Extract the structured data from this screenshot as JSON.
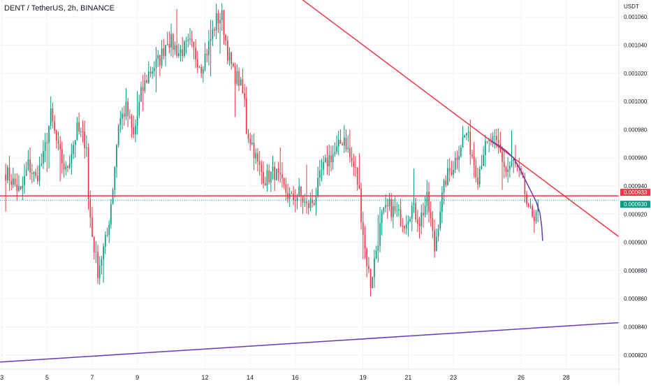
{
  "chart_data": {
    "type": "candlestick",
    "title": "DENT / TetherUS, 2h, BINANCE",
    "currency_label": "USDT",
    "y_ticks": [
      0.00082,
      0.00084,
      0.00086,
      0.00088,
      0.0009,
      0.00092,
      0.00094,
      0.00096,
      0.00098,
      0.001,
      0.00102,
      0.00104,
      0.00106
    ],
    "y_tick_labels": [
      "0.000820",
      "0.000840",
      "0.000860",
      "0.000880",
      "0.000900",
      "0.000920",
      "0.000940",
      "0.000960",
      "0.000980",
      "0.001000",
      "0.001020",
      "0.001040",
      "0.001060"
    ],
    "ylim": [
      0.00081,
      0.001072
    ],
    "x_ticks": [
      {
        "label": "3",
        "bar": -2
      },
      {
        "label": "5",
        "bar": 22
      },
      {
        "label": "7",
        "bar": 46
      },
      {
        "label": "9",
        "bar": 70
      },
      {
        "label": "12",
        "bar": 106
      },
      {
        "label": "14",
        "bar": 130
      },
      {
        "label": "16",
        "bar": 154
      },
      {
        "label": "19",
        "bar": 190
      },
      {
        "label": "21",
        "bar": 214
      },
      {
        "label": "23",
        "bar": 238
      },
      {
        "label": "26",
        "bar": 274
      },
      {
        "label": "28",
        "bar": 298
      }
    ],
    "xlim_bars": [
      -3,
      326
    ],
    "price_labels": [
      {
        "text": "0.000933",
        "value": 0.000933,
        "color": "#f23645"
      },
      {
        "text": "0.000930",
        "value": 0.00093,
        "color": "#089981"
      }
    ],
    "anchors": [
      [
        0,
        0.00095
      ],
      [
        8,
        0.000935
      ],
      [
        12,
        0.000955
      ],
      [
        16,
        0.000945
      ],
      [
        20,
        0.00096
      ],
      [
        24,
        0.00099
      ],
      [
        28,
        0.000965
      ],
      [
        32,
        0.00095
      ],
      [
        38,
        0.00098
      ],
      [
        43,
        0.00097
      ],
      [
        44,
        0.00093
      ],
      [
        46,
        0.000905
      ],
      [
        49,
        0.00088
      ],
      [
        54,
        0.000905
      ],
      [
        57,
        0.00094
      ],
      [
        60,
        0.000985
      ],
      [
        64,
        0.000995
      ],
      [
        68,
        0.000975
      ],
      [
        72,
        0.001005
      ],
      [
        76,
        0.00102
      ],
      [
        82,
        0.00103
      ],
      [
        86,
        0.001045
      ],
      [
        92,
        0.001035
      ],
      [
        98,
        0.00104
      ],
      [
        104,
        0.001025
      ],
      [
        108,
        0.00104
      ],
      [
        112,
        0.001058
      ],
      [
        115,
        0.00106
      ],
      [
        118,
        0.001035
      ],
      [
        121,
        0.00102
      ],
      [
        124,
        0.001015
      ],
      [
        127,
        0.001
      ],
      [
        128,
        0.00098
      ],
      [
        131,
        0.00097
      ],
      [
        134,
        0.000955
      ],
      [
        138,
        0.000945
      ],
      [
        143,
        0.00095
      ],
      [
        147,
        0.00094
      ],
      [
        152,
        0.00093
      ],
      [
        156,
        0.000935
      ],
      [
        160,
        0.000925
      ],
      [
        164,
        0.00093
      ],
      [
        168,
        0.00095
      ],
      [
        172,
        0.00096
      ],
      [
        176,
        0.000965
      ],
      [
        180,
        0.000975
      ],
      [
        183,
        0.00096
      ],
      [
        186,
        0.00095
      ],
      [
        188,
        0.000935
      ],
      [
        189,
        0.00092
      ],
      [
        191,
        0.000895
      ],
      [
        194,
        0.00087
      ],
      [
        197,
        0.000895
      ],
      [
        200,
        0.000918
      ],
      [
        204,
        0.000925
      ],
      [
        208,
        0.00092
      ],
      [
        212,
        0.000915
      ],
      [
        216,
        0.000925
      ],
      [
        220,
        0.000915
      ],
      [
        224,
        0.00093
      ],
      [
        226,
        0.000915
      ],
      [
        228,
        0.000895
      ],
      [
        231,
        0.000925
      ],
      [
        234,
        0.000945
      ],
      [
        238,
        0.000955
      ],
      [
        242,
        0.00097
      ],
      [
        245,
        0.000978
      ],
      [
        248,
        0.000962
      ],
      [
        251,
        0.000947
      ],
      [
        254,
        0.000965
      ],
      [
        258,
        0.000972
      ],
      [
        262,
        0.000968
      ],
      [
        266,
        0.00095
      ],
      [
        270,
        0.000957
      ],
      [
        274,
        0.000945
      ],
      [
        276,
        0.000935
      ],
      [
        278,
        0.00092
      ],
      [
        281,
        0.00092
      ],
      [
        283,
        0.000927
      ]
    ],
    "lines": [
      {
        "name": "red-resistance-trendline",
        "color": "#f23645",
        "x": [
          150,
          326
        ],
        "y": [
          0.00108,
          0.000904
        ]
      },
      {
        "name": "purple-support-trendline",
        "color": "#673ab7",
        "x": [
          -3,
          326
        ],
        "y": [
          0.000815,
          0.000843
        ]
      },
      {
        "name": "red-horizontal-level",
        "color": "#f23645",
        "x": [
          -3,
          326
        ],
        "y": [
          0.000933,
          0.000933
        ]
      },
      {
        "name": "current-price-dotted-line",
        "color": "#089981",
        "x": [
          -3,
          326
        ],
        "y": [
          0.00093,
          0.00093
        ],
        "dashed": true
      },
      {
        "name": "purple-curve-drawing",
        "color": "#673ab7",
        "x": [
          258,
          262,
          266,
          270,
          273,
          276,
          279,
          282,
          284,
          285,
          285.5
        ],
        "y": [
          0.000972,
          0.000969,
          0.000965,
          0.00096,
          0.000953,
          0.000945,
          0.000937,
          0.000929,
          0.000921,
          0.000911,
          0.000901
        ]
      }
    ],
    "colors": {
      "up": "#089981",
      "down": "#f23645",
      "grid": "#f0f3fa",
      "text": "#131722"
    }
  }
}
